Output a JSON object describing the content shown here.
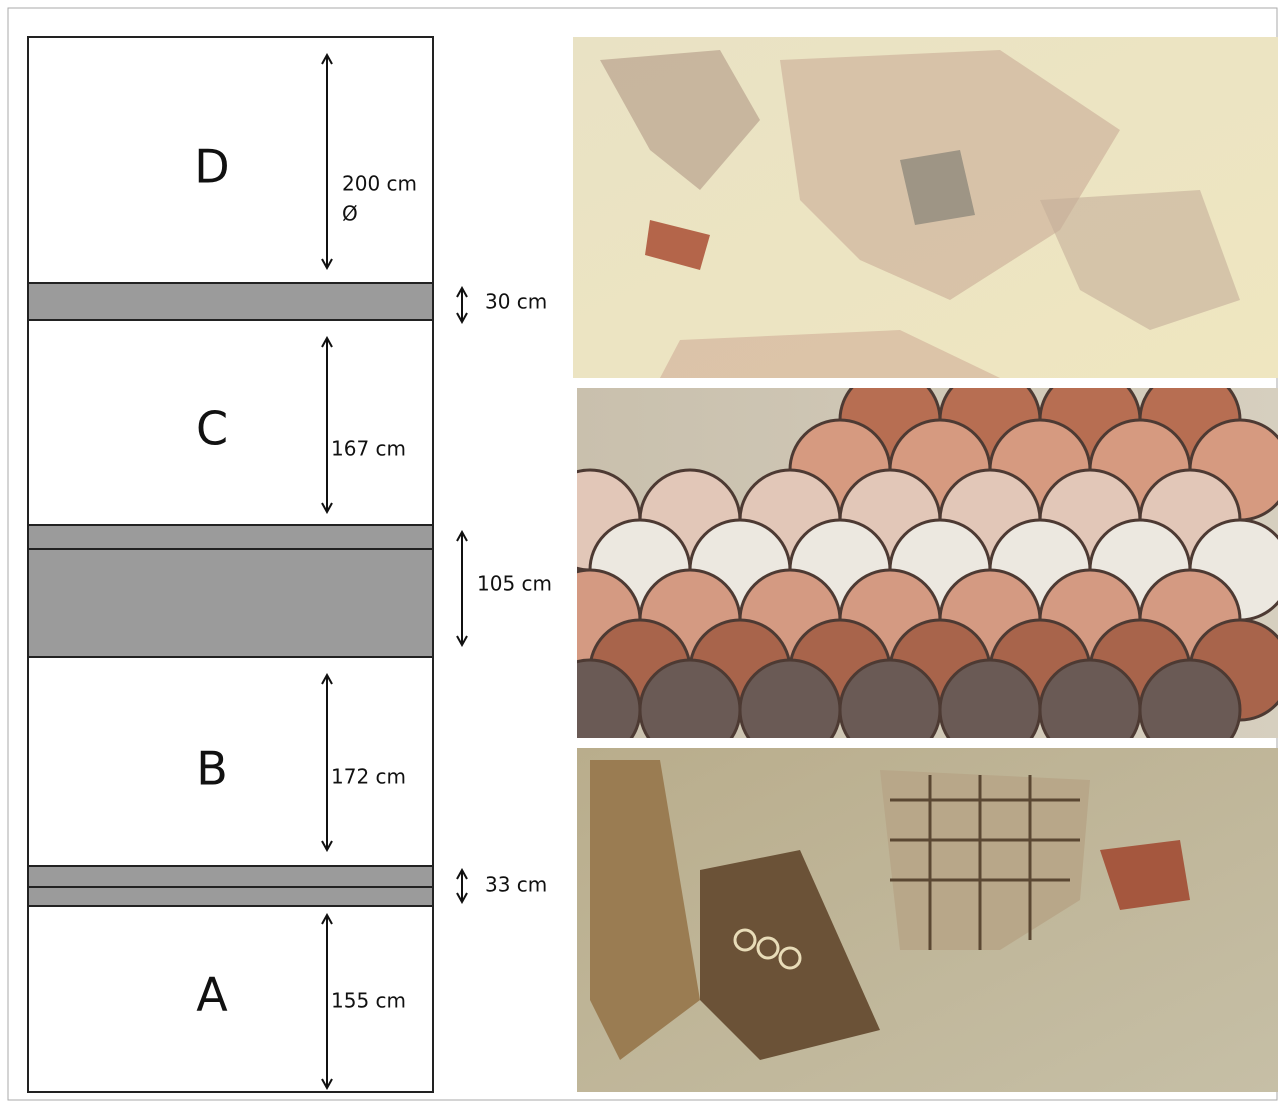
{
  "sections": [
    {
      "label": "D",
      "dimension": "200 cm",
      "note": "Ø"
    },
    {
      "label": "C",
      "dimension": "167 cm"
    },
    {
      "label": "B",
      "dimension": "172 cm"
    },
    {
      "label": "A",
      "dimension": "155 cm"
    }
  ],
  "bands": [
    {
      "dimension": "30 cm"
    },
    {
      "dimension": "105 cm"
    },
    {
      "dimension": "33 cm"
    }
  ]
}
